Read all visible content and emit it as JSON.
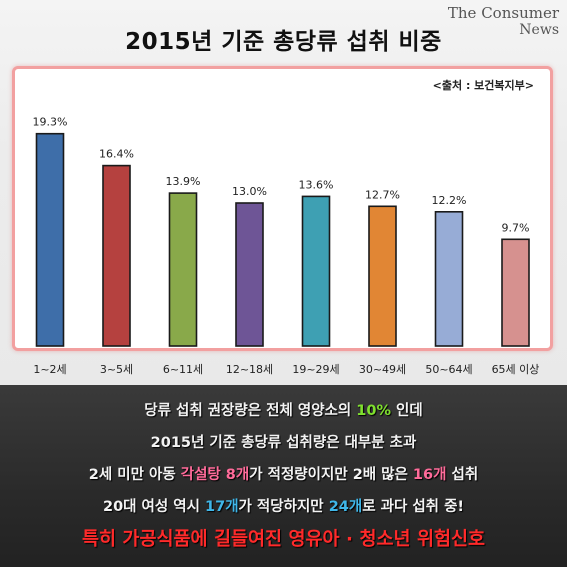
{
  "header": {
    "title": "2015년 기준 총당류 섭취 비중",
    "brand_line1": "The Consumer",
    "brand_line2": "News",
    "source": "<출처 : 보건복지부>"
  },
  "chart_data": {
    "type": "bar",
    "title": "2015년 기준 총당류 섭취 비중",
    "xlabel": "",
    "ylabel": "",
    "ylim": [
      0,
      25
    ],
    "grid": false,
    "categories": [
      "1~2세",
      "3~5세",
      "6~11세",
      "12~18세",
      "19~29세",
      "30~49세",
      "50~64세",
      "65세 이상"
    ],
    "values": [
      19.3,
      16.4,
      13.9,
      13.0,
      13.6,
      12.7,
      12.2,
      9.7
    ],
    "value_labels": [
      "19.3%",
      "16.4%",
      "13.9%",
      "13.0%",
      "13.6%",
      "12.7%",
      "12.2%",
      "9.7%"
    ],
    "colors": [
      "#3e6ea9",
      "#b5413f",
      "#89a94a",
      "#6e5596",
      "#3ea0b3",
      "#e18634",
      "#97acd6",
      "#d6918f"
    ]
  },
  "notes": {
    "line1": {
      "a": "당류 섭취 권장량은 전체 영양소의 ",
      "b": "10%",
      "c": " 인데"
    },
    "line2": {
      "a": "2015년 기준 총당류 섭취량은 대부분 초과"
    },
    "line3": {
      "a": "2세 미만 아동 ",
      "b": "각설탕 8개",
      "c": "가 적정량이지만 2배 많은 ",
      "d": "16개",
      "e": " 섭취"
    },
    "line4": {
      "a": "20대 여성 역시 ",
      "b": "17개",
      "c": "가 적당하지만 ",
      "d": "24개",
      "e": "로 과다 섭취 중!"
    },
    "line5": {
      "a": "특히 가공식품에 길들여진 영유아 · 청소년 위험신호"
    }
  }
}
